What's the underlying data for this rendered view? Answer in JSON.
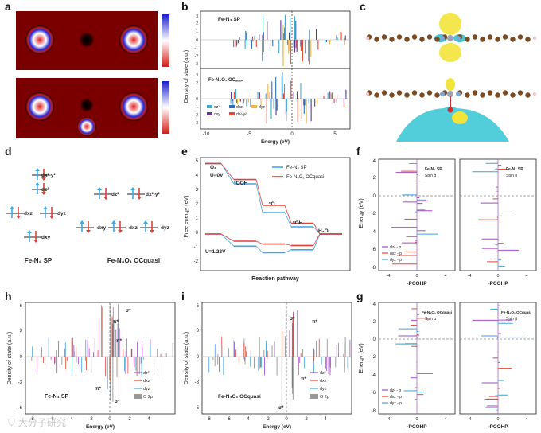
{
  "panels": {
    "a": {
      "label": "a"
    },
    "b": {
      "label": "b",
      "ylabel": "Density of state (a.u.)",
      "xlabel": "Energy (eV)",
      "top_title": "Fe-N₄ SP",
      "bottom_title": "Fe-N₄O₁ OCₐᵤₐₛᵢ",
      "xticks": [
        "-10",
        "-5",
        "0",
        "5"
      ],
      "yticks_top": [
        "3",
        "2",
        "1",
        "0",
        "-1",
        "-2",
        "-3"
      ],
      "yticks_bottom": [
        "3",
        "2",
        "1",
        "0",
        "-1",
        "-2",
        "-3"
      ],
      "legend": [
        "dz²",
        "dxz",
        "dyz",
        "dxy",
        "dx²-y²"
      ],
      "legend_colors": [
        "#3fa9d6",
        "#5a3a8f",
        "#e8b64a",
        "#e24a3a",
        "#2f6fb5"
      ]
    },
    "c": {
      "label": "c"
    },
    "d": {
      "label": "d",
      "orbitals_left": [
        "dx²-y²",
        "dz²",
        "dxz",
        "dyz",
        "dxy"
      ],
      "orbitals_right": [
        "dz²",
        "dx²-y²",
        "dxy",
        "dxz",
        "dyz"
      ],
      "caption_left": "Fe-N₄ SP",
      "caption_right": "Fe-N₄O₁ OCquasi"
    },
    "e": {
      "label": "e",
      "ylabel": "Free energy (eV)",
      "xlabel": "Reaction pathway",
      "yticks": [
        "5",
        "4",
        "3",
        "2",
        "1",
        "0",
        "-1",
        "-2"
      ],
      "legend": [
        "Fe-N₄ SP",
        "Fe-N₄O₁ OCquasi"
      ],
      "legend_colors": [
        "#3fa9e6",
        "#e0413a"
      ],
      "annotations": [
        "O₂",
        "U=0V",
        "*OOH",
        "*O",
        "*OH",
        "H₂O",
        "U=1.23V"
      ]
    },
    "f": {
      "label": "f",
      "ylabel": "Energy (eV)",
      "xlabel": "-PCOHP",
      "yticks": [
        "4",
        "2",
        "0",
        "-2",
        "-4",
        "-6",
        "-8"
      ],
      "xticks": [
        "-4",
        "0",
        "4"
      ],
      "titles": [
        "Fe-N₄ SP",
        "Fe-N₄ SP"
      ],
      "spins": [
        "Spin α",
        "Spin β"
      ],
      "legend": [
        "dz² - p",
        "dxz - p",
        "dyz - p"
      ]
    },
    "g": {
      "label": "g",
      "ylabel": "Energy (eV)",
      "xlabel": "-PCOHP",
      "yticks": [
        "4",
        "2",
        "0",
        "-2",
        "-4",
        "-6",
        "-8"
      ],
      "xticks": [
        "-4",
        "0",
        "4"
      ],
      "titles": [
        "Fe-N₄O₁ OCquasi",
        "Fe-N₄O₁ OCquasi"
      ],
      "spins": [
        "Spin α",
        "Spin β"
      ],
      "legend": [
        "dz² - p",
        "dxz - p",
        "dyz - p"
      ]
    },
    "h": {
      "label": "h",
      "ylabel": "Density of state (a.u.)",
      "xlabel": "Energy (eV)",
      "title": "Fe-N₄ SP",
      "xticks": [
        "-8",
        "-6",
        "-4",
        "-2",
        "0",
        "2",
        "4"
      ],
      "yticks": [
        "6",
        "3",
        "0",
        "-3",
        "-6"
      ],
      "annotations": [
        "σ*",
        "π*",
        "π*",
        "π*",
        "σ*"
      ],
      "legend": [
        "dz²",
        "dxz",
        "dyz",
        "O 2p"
      ]
    },
    "i": {
      "label": "i",
      "ylabel": "Density of state (a.u.)",
      "xlabel": "Energy (eV)",
      "title": "Fe-N₄O₁ OCquasi",
      "xticks": [
        "-8",
        "-6",
        "-4",
        "-2",
        "0",
        "2",
        "4"
      ],
      "yticks": [
        "6",
        "3",
        "0",
        "-3",
        "-6"
      ],
      "annotations": [
        "σ*",
        "π*",
        "π*",
        "σ*"
      ],
      "legend": [
        "dz²",
        "dxz",
        "dyz",
        "O 2p"
      ]
    }
  },
  "colors": {
    "dz2": "#a24ec4",
    "dxz": "#e04a3a",
    "dyz": "#3fa3d8",
    "o2p": "#888888",
    "blue": "#3fa9e6",
    "red": "#e0413a"
  },
  "watermark": "⛉ 大分子研究"
}
